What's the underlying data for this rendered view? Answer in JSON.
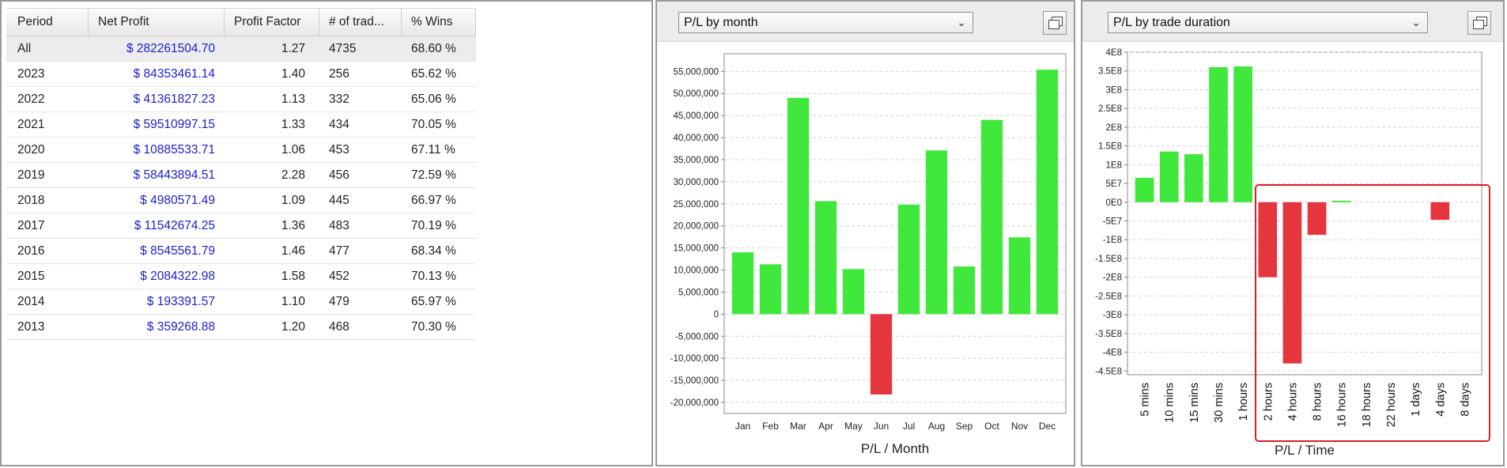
{
  "table": {
    "columns": [
      "Period",
      "Net Profit",
      "Profit Factor",
      "# of trad...",
      "% Wins"
    ],
    "rows": [
      {
        "period": "All",
        "net_profit": "$ 282261504.70",
        "profit_factor": "1.27",
        "trades": "4735",
        "wins": "68.60 %"
      },
      {
        "period": "2023",
        "net_profit": "$ 84353461.14",
        "profit_factor": "1.40",
        "trades": "256",
        "wins": "65.62 %"
      },
      {
        "period": "2022",
        "net_profit": "$ 41361827.23",
        "profit_factor": "1.13",
        "trades": "332",
        "wins": "65.06 %"
      },
      {
        "period": "2021",
        "net_profit": "$ 59510997.15",
        "profit_factor": "1.33",
        "trades": "434",
        "wins": "70.05 %"
      },
      {
        "period": "2020",
        "net_profit": "$ 10885533.71",
        "profit_factor": "1.06",
        "trades": "453",
        "wins": "67.11 %"
      },
      {
        "period": "2019",
        "net_profit": "$ 58443894.51",
        "profit_factor": "2.28",
        "trades": "456",
        "wins": "72.59 %"
      },
      {
        "period": "2018",
        "net_profit": "$ 4980571.49",
        "profit_factor": "1.09",
        "trades": "445",
        "wins": "66.97 %"
      },
      {
        "period": "2017",
        "net_profit": "$ 11542674.25",
        "profit_factor": "1.36",
        "trades": "483",
        "wins": "70.19 %"
      },
      {
        "period": "2016",
        "net_profit": "$ 8545561.79",
        "profit_factor": "1.46",
        "trades": "477",
        "wins": "68.34 %"
      },
      {
        "period": "2015",
        "net_profit": "$ 2084322.98",
        "profit_factor": "1.58",
        "trades": "452",
        "wins": "70.13 %"
      },
      {
        "period": "2014",
        "net_profit": "$ 193391.57",
        "profit_factor": "1.10",
        "trades": "479",
        "wins": "65.97 %"
      },
      {
        "period": "2013",
        "net_profit": "$ 359268.88",
        "profit_factor": "1.20",
        "trades": "468",
        "wins": "70.30 %"
      }
    ]
  },
  "month_panel": {
    "select_value": "P/L by month",
    "icon": "restore-window-icon"
  },
  "duration_panel": {
    "select_value": "P/L by trade duration",
    "icon": "restore-window-icon"
  },
  "colors": {
    "positive": "#3fe83b",
    "negative": "#e5363e",
    "highlight_box": "#d9202a"
  },
  "chart_data": [
    {
      "type": "bar",
      "xlabel": "P/L / Month",
      "categories": [
        "Jan",
        "Feb",
        "Mar",
        "Apr",
        "May",
        "Jun",
        "Jul",
        "Aug",
        "Sep",
        "Oct",
        "Nov",
        "Dec"
      ],
      "values": [
        14000000,
        11300000,
        49000000,
        25600000,
        10200000,
        -18200000,
        24800000,
        37100000,
        10800000,
        44000000,
        17400000,
        55400000
      ],
      "ylim": [
        -22500000,
        59000000
      ],
      "yticks": [
        55000000,
        50000000,
        45000000,
        40000000,
        35000000,
        30000000,
        25000000,
        20000000,
        15000000,
        10000000,
        5000000,
        0,
        -5000000,
        -10000000,
        -15000000,
        -20000000
      ],
      "ytick_labels": [
        "55,000,000",
        "50,000,000",
        "45,000,000",
        "40,000,000",
        "35,000,000",
        "30,000,000",
        "25,000,000",
        "20,000,000",
        "15,000,000",
        "10,000,000",
        "5,000,000",
        "0",
        "-5,000,000",
        "-10,000,000",
        "-15,000,000",
        "-20,000,000"
      ],
      "grid": true
    },
    {
      "type": "bar",
      "xlabel": "P/L / Time",
      "categories": [
        "5 mins",
        "10 mins",
        "15 mins",
        "30 mins",
        "1 hours",
        "2 hours",
        "4 hours",
        "8 hours",
        "16 hours",
        "18 hours",
        "22 hours",
        "1 days",
        "4 days",
        "8 days"
      ],
      "values": [
        65000000,
        135000000,
        128000000,
        360000000,
        362000000,
        -200000000,
        -430000000,
        -87000000,
        4000000,
        0,
        0,
        0,
        -47000000,
        0
      ],
      "ylim": [
        -460000000,
        400000000
      ],
      "yticks": [
        400000000,
        350000000,
        300000000,
        250000000,
        200000000,
        150000000,
        100000000,
        50000000,
        0,
        -50000000,
        -100000000,
        -150000000,
        -200000000,
        -250000000,
        -300000000,
        -350000000,
        -400000000,
        -450000000
      ],
      "ytick_labels": [
        "4E8",
        "3.5E8",
        "3E8",
        "2.5E8",
        "2E8",
        "1.5E8",
        "1E8",
        "5E7",
        "0E0",
        "-5E7",
        "-1E8",
        "-1.5E8",
        "-2E8",
        "-2.5E8",
        "-3E8",
        "-3.5E8",
        "-4E8",
        "-4.5E8"
      ],
      "grid": true,
      "annotation": "red rectangle highlighting 2 hours through 8 days"
    }
  ]
}
